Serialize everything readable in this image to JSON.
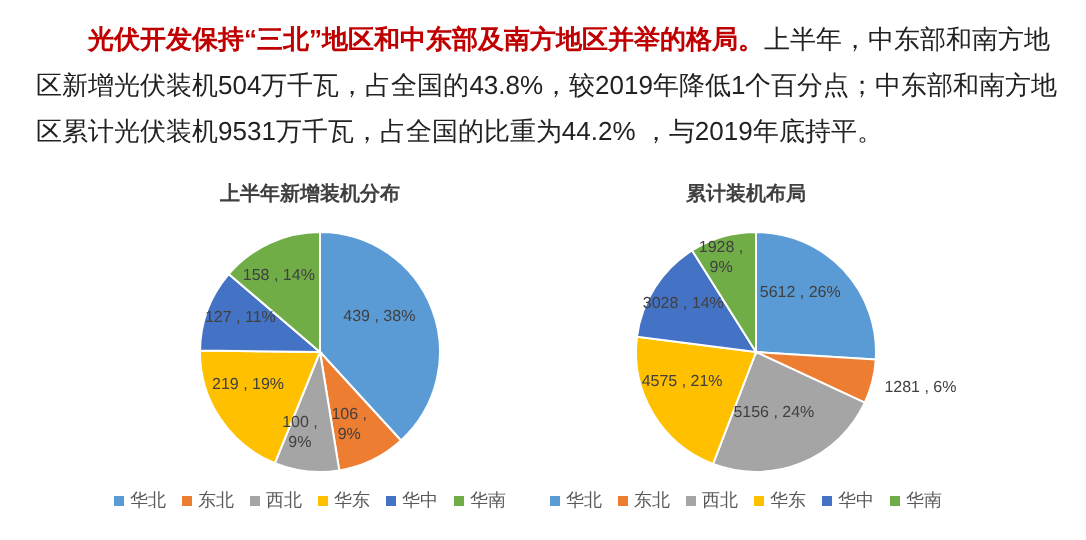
{
  "chart_data": [
    {
      "type": "other",
      "title": "光伏开发保持“三北”地区和中东部及南方地区并举的格局。",
      "annotations": [
        "上半年，中东部和南方地区新增光伏装机504万千瓦，占全国的43.8%，较2019年降低1个百分点；中东部和南方地区累计光伏装机9531万千瓦，占全国的比重为44.2% ，与2019年底持平。"
      ]
    },
    {
      "type": "pie",
      "title": "上半年新增装机分布",
      "categories": [
        "华北",
        "东北",
        "西北",
        "华东",
        "华中",
        "华南"
      ],
      "values": [
        439,
        106,
        100,
        219,
        127,
        158
      ],
      "value_labels": [
        "439 , 38%",
        "106 , 9%",
        "100 , 9%",
        "219 , 19%",
        "127 , 11%",
        "158 , 14%"
      ],
      "colors": [
        "#5b9bd5",
        "#ed7d31",
        "#a5a5a5",
        "#ffc000",
        "#4472c4",
        "#70ad47"
      ],
      "legend": "bottom"
    },
    {
      "type": "pie",
      "title": "累计装机布局",
      "categories": [
        "华北",
        "东北",
        "西北",
        "华东",
        "华中",
        "华南"
      ],
      "values": [
        5612,
        1281,
        5156,
        4575,
        3028,
        1928
      ],
      "value_labels": [
        "5612 , 26%",
        "1281 , 6%",
        "5156 , 24%",
        "4575 , 21%",
        "3028 , 14%",
        "1928 , 9%"
      ],
      "colors": [
        "#5b9bd5",
        "#ed7d31",
        "#a5a5a5",
        "#ffc000",
        "#4472c4",
        "#70ad47"
      ],
      "legend": "bottom"
    }
  ]
}
